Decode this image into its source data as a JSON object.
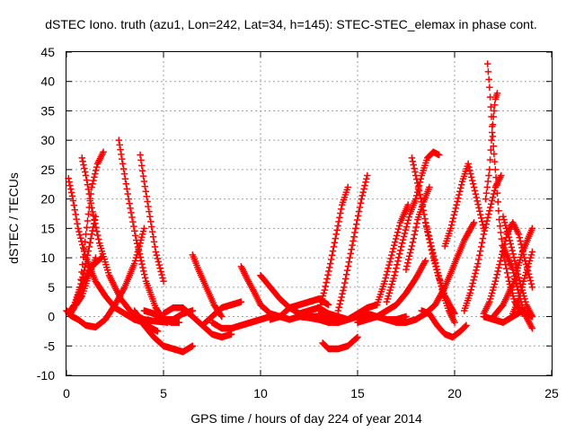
{
  "chart_data": {
    "type": "scatter",
    "title": "dSTEC Iono. truth (azu1, Lon=242, Lat=34, h=145): STEC-STEC_elemax in phase cont.",
    "xlabel": "GPS time / hours of day 224 of year 2014",
    "ylabel": "dSTEC  / TECUs",
    "xlim": [
      0,
      25
    ],
    "ylim": [
      -10,
      45
    ],
    "xticks": [
      0,
      5,
      10,
      15,
      20,
      25
    ],
    "yticks": [
      -10,
      -5,
      0,
      5,
      10,
      15,
      20,
      25,
      30,
      35,
      40,
      45
    ],
    "xtick_labels": [
      "0",
      "5",
      "10",
      "15",
      "20",
      "25"
    ],
    "ytick_labels": [
      "-10",
      "-5",
      "0",
      "5",
      "10",
      "15",
      "20",
      "25",
      "30",
      "35",
      "40",
      "45"
    ],
    "grid": true,
    "marker": "plus",
    "color": "#ff0000",
    "series": [
      {
        "x": [
          0.0,
          0.2,
          0.4,
          0.6,
          0.9,
          1.3,
          1.8
        ],
        "y": [
          1.0,
          0.5,
          1.5,
          3.5,
          6.0,
          8.5,
          10.0
        ]
      },
      {
        "x": [
          0.1,
          0.3,
          0.6,
          1.0,
          1.5,
          2.0,
          2.5,
          3.0,
          3.5,
          3.8,
          4.0
        ],
        "y": [
          0.5,
          0.0,
          -0.5,
          -1.5,
          -1.8,
          -0.5,
          2.0,
          5.0,
          9.0,
          12.5,
          15.0
        ]
      },
      {
        "x": [
          0.1,
          0.3,
          0.6,
          1.0,
          1.5,
          2.0,
          2.5,
          3.0,
          3.5,
          4.0,
          4.4,
          4.7
        ],
        "y": [
          23.5,
          20.5,
          15.0,
          10.0,
          6.0,
          3.5,
          1.5,
          0.5,
          -0.5,
          -1.0,
          -2.0,
          -2.5
        ]
      },
      {
        "x": [
          0.2,
          0.4,
          0.7,
          1.0,
          1.3,
          1.5
        ],
        "y": [
          1.0,
          2.0,
          5.0,
          9.0,
          14.0,
          17.0
        ]
      },
      {
        "x": [
          0.5,
          0.8,
          1.1,
          1.5
        ],
        "y": [
          2.0,
          3.5,
          6.5,
          10.0
        ]
      },
      {
        "x": [
          0.7,
          1.0,
          1.3,
          1.6,
          1.9
        ],
        "y": [
          5.0,
          14.0,
          22.0,
          26.0,
          28.0
        ]
      },
      {
        "x": [
          0.8,
          1.0,
          1.3,
          1.7,
          2.2,
          2.8,
          3.4,
          4.0,
          4.6,
          5.2
        ],
        "y": [
          27.0,
          24.0,
          18.5,
          12.5,
          7.0,
          3.0,
          0.5,
          -0.5,
          -0.8,
          -1.0
        ]
      },
      {
        "x": [
          2.7,
          2.9,
          3.2,
          3.6,
          4.1,
          4.6,
          5.0,
          5.4,
          5.8
        ],
        "y": [
          30.0,
          26.0,
          20.0,
          13.0,
          6.0,
          1.5,
          -0.5,
          -1.0,
          -1.0
        ]
      },
      {
        "x": [
          3.8,
          4.0,
          4.3,
          4.6,
          5.0
        ],
        "y": [
          27.5,
          23.0,
          17.0,
          11.0,
          6.0
        ]
      },
      {
        "x": [
          3.5,
          4.0,
          4.5,
          5.0,
          5.5,
          6.0,
          6.5
        ],
        "y": [
          1.0,
          -1.5,
          -3.5,
          -5.0,
          -5.5,
          -6.0,
          -5.0
        ]
      },
      {
        "x": [
          4.0,
          4.5,
          5.0,
          5.5,
          6.0,
          6.5
        ],
        "y": [
          1.0,
          0.5,
          -0.5,
          -0.5,
          0.5,
          1.0
        ]
      },
      {
        "x": [
          5.0,
          5.5,
          6.0,
          6.5,
          7.0,
          7.5,
          8.0,
          8.5
        ],
        "y": [
          0.5,
          1.5,
          1.5,
          0.0,
          -1.5,
          -3.0,
          -3.5,
          -3.0
        ]
      },
      {
        "x": [
          6.5,
          6.8,
          7.2,
          7.6,
          8.0
        ],
        "y": [
          10.5,
          8.0,
          5.0,
          2.0,
          0.0
        ]
      },
      {
        "x": [
          7.0,
          7.5,
          8.0,
          8.5,
          9.0
        ],
        "y": [
          -1.5,
          0.0,
          1.5,
          2.0,
          2.5
        ]
      },
      {
        "x": [
          7.5,
          8.0,
          8.5,
          9.0,
          9.5,
          10.0,
          10.5
        ],
        "y": [
          -1.0,
          -2.0,
          -2.0,
          -1.5,
          -1.0,
          -0.5,
          0.0
        ]
      },
      {
        "x": [
          9.0,
          9.3,
          9.7,
          10.0,
          10.5,
          11.0,
          11.5,
          12.0
        ],
        "y": [
          8.5,
          6.5,
          4.0,
          2.0,
          0.5,
          0.0,
          -0.5,
          0.0
        ]
      },
      {
        "x": [
          10.0,
          10.5,
          11.0,
          11.5,
          12.0,
          12.5,
          13.0
        ],
        "y": [
          7.0,
          5.0,
          3.0,
          1.5,
          0.5,
          0.0,
          0.0
        ]
      },
      {
        "x": [
          10.5,
          11.0,
          11.5,
          12.0,
          12.5,
          13.0,
          13.5
        ],
        "y": [
          -0.5,
          0.0,
          1.5,
          2.0,
          2.5,
          3.0,
          2.0
        ]
      },
      {
        "x": [
          12.0,
          12.5,
          13.0,
          13.5,
          14.0,
          14.5,
          15.0
        ],
        "y": [
          0.5,
          1.0,
          1.5,
          0.5,
          0.0,
          -0.5,
          0.0
        ]
      },
      {
        "x": [
          12.0,
          12.5,
          13.0,
          13.5,
          14.0,
          14.5,
          15.0,
          15.5,
          16.0,
          16.5,
          17.0,
          17.5
        ],
        "y": [
          0.0,
          -0.2,
          -0.5,
          -1.0,
          -1.0,
          -0.5,
          0.0,
          0.5,
          0.0,
          -0.5,
          -0.5,
          0.0
        ]
      },
      {
        "x": [
          13.2,
          13.5,
          14.0,
          14.5,
          15.0
        ],
        "y": [
          -4.5,
          -5.5,
          -5.5,
          -5.0,
          -3.5
        ]
      },
      {
        "x": [
          13.0,
          13.5,
          14.0,
          14.5,
          15.0,
          15.5,
          16.0
        ],
        "y": [
          0.5,
          -0.5,
          -1.0,
          -0.5,
          0.5,
          1.5,
          2.0
        ]
      },
      {
        "x": [
          13.0,
          13.3,
          13.6,
          13.9,
          14.2,
          14.5
        ],
        "y": [
          1.0,
          4.5,
          9.0,
          14.0,
          19.0,
          22.0
        ]
      },
      {
        "x": [
          14.0,
          14.3,
          14.6,
          14.9,
          15.2,
          15.5
        ],
        "y": [
          1.0,
          5.0,
          10.0,
          15.0,
          20.0,
          24.0
        ]
      },
      {
        "x": [
          15.0,
          15.5,
          16.0,
          16.5,
          17.0,
          17.5,
          18.0,
          18.5
        ],
        "y": [
          -1.0,
          -0.5,
          0.0,
          1.0,
          2.0,
          4.0,
          6.5,
          9.5
        ]
      },
      {
        "x": [
          16.0,
          16.4,
          16.8,
          17.2,
          17.6
        ],
        "y": [
          2.0,
          6.0,
          11.0,
          16.0,
          19.0
        ]
      },
      {
        "x": [
          16.5,
          16.9,
          17.3,
          17.7,
          18.0
        ],
        "y": [
          2.5,
          7.0,
          12.5,
          17.5,
          20.0
        ]
      },
      {
        "x": [
          17.5,
          17.8,
          18.1,
          18.4,
          18.7
        ],
        "y": [
          8.0,
          12.0,
          16.5,
          19.5,
          22.0
        ]
      },
      {
        "x": [
          17.8,
          18.0,
          18.3,
          18.6,
          18.9,
          19.2,
          19.5,
          20.0
        ],
        "y": [
          27.0,
          24.0,
          19.5,
          14.5,
          10.0,
          6.5,
          3.5,
          0.5
        ]
      },
      {
        "x": [
          18.0,
          18.3,
          18.6,
          18.9,
          19.2
        ],
        "y": [
          20.0,
          24.0,
          27.0,
          28.0,
          27.5
        ]
      },
      {
        "x": [
          16.5,
          17.0,
          17.5,
          18.0,
          18.5,
          19.0,
          19.5,
          20.0,
          20.5,
          21.0
        ],
        "y": [
          -0.5,
          -1.0,
          -1.0,
          -0.5,
          0.5,
          2.0,
          5.0,
          9.0,
          13.0,
          16.0
        ]
      },
      {
        "x": [
          18.5,
          18.8,
          19.1,
          19.4,
          19.7,
          20.0
        ],
        "y": [
          16.0,
          12.0,
          8.0,
          4.0,
          1.0,
          -1.0
        ]
      },
      {
        "x": [
          18.3,
          18.7,
          19.1,
          19.5,
          19.9,
          20.3,
          20.6
        ],
        "y": [
          1.0,
          0.5,
          -1.5,
          -3.0,
          -3.5,
          -2.5,
          -1.5
        ]
      },
      {
        "x": [
          19.5,
          19.8,
          20.1,
          20.4,
          20.7,
          21.0,
          21.5
        ],
        "y": [
          12.0,
          15.0,
          19.0,
          23.0,
          26.0,
          22.0,
          15.0
        ]
      },
      {
        "x": [
          20.5,
          20.8,
          21.2,
          21.5,
          21.8,
          22.1,
          22.4
        ],
        "y": [
          1.0,
          4.0,
          9.0,
          14.0,
          18.0,
          22.0,
          24.0
        ]
      },
      {
        "x": [
          21.7,
          21.8,
          21.9,
          22.0,
          22.1,
          22.2,
          22.3,
          22.5,
          22.8,
          23.1,
          23.5
        ],
        "y": [
          43.0,
          39.0,
          34.0,
          29.0,
          25.0,
          21.0,
          16.5,
          11.0,
          6.0,
          2.5,
          0.5
        ]
      },
      {
        "x": [
          21.6,
          21.8,
          21.9,
          22.0,
          22.1,
          22.2
        ],
        "y": [
          20.0,
          25.0,
          30.0,
          34.0,
          37.0,
          38.0
        ]
      },
      {
        "x": [
          21.5,
          21.8,
          22.1,
          22.4,
          22.7,
          23.0,
          23.3,
          23.6,
          24.0
        ],
        "y": [
          0.5,
          2.5,
          6.0,
          10.0,
          14.0,
          16.0,
          14.0,
          10.0,
          5.0
        ]
      },
      {
        "x": [
          22.5,
          22.8,
          23.1,
          23.4,
          23.7,
          24.0
        ],
        "y": [
          17.0,
          13.5,
          9.5,
          5.5,
          2.0,
          0.0
        ]
      },
      {
        "x": [
          22.0,
          22.5,
          23.0,
          23.5,
          24.0
        ],
        "y": [
          0.0,
          2.0,
          5.5,
          11.0,
          15.0
        ]
      },
      {
        "x": [
          22.5,
          23.0,
          23.3,
          23.6,
          24.0
        ],
        "y": [
          12.0,
          8.0,
          4.0,
          0.5,
          -2.0
        ]
      },
      {
        "x": [
          23.0,
          23.3,
          23.6,
          24.0
        ],
        "y": [
          0.5,
          3.0,
          6.5,
          11.0
        ]
      },
      {
        "x": [
          21.5,
          22.0,
          22.5,
          23.0,
          23.5,
          24.0
        ],
        "y": [
          0.0,
          -0.5,
          -1.0,
          0.0,
          1.0,
          0.0
        ]
      }
    ]
  }
}
